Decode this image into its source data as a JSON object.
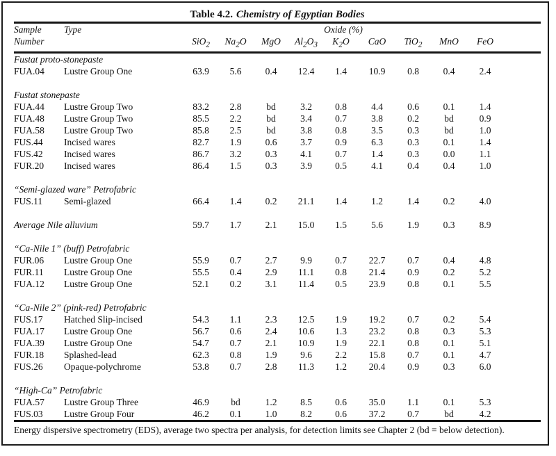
{
  "title": {
    "prefix": "Table 4.2.",
    "name": "Chemistry of Egyptian Bodies"
  },
  "header": {
    "sample_line1": "Sample",
    "sample_line2": "Number",
    "type_label": "Type",
    "oxide_group_label": "Oxide (%)",
    "oxide_columns": [
      "SiO_2",
      "Na_2O",
      "MgO",
      "Al_2O_3",
      "K_2O",
      "CaO",
      "TiO_2",
      "MnO",
      "FeO"
    ]
  },
  "sections": [
    {
      "title": "Fustat proto-stonepaste",
      "rows": [
        {
          "sample": "FUA.04",
          "type": "Lustre Group One",
          "values": [
            "63.9",
            "5.6",
            "0.4",
            "12.4",
            "1.4",
            "10.9",
            "0.8",
            "0.4",
            "2.4"
          ]
        }
      ]
    },
    {
      "title": "Fustat stonepaste",
      "rows": [
        {
          "sample": "FUA.44",
          "type": "Lustre Group Two",
          "values": [
            "83.2",
            "2.8",
            "bd",
            "3.2",
            "0.8",
            "4.4",
            "0.6",
            "0.1",
            "1.4"
          ]
        },
        {
          "sample": "FUA.48",
          "type": "Lustre Group Two",
          "values": [
            "85.5",
            "2.2",
            "bd",
            "3.4",
            "0.7",
            "3.8",
            "0.2",
            "bd",
            "0.9"
          ]
        },
        {
          "sample": "FUA.58",
          "type": "Lustre Group Two",
          "values": [
            "85.8",
            "2.5",
            "bd",
            "3.8",
            "0.8",
            "3.5",
            "0.3",
            "bd",
            "1.0"
          ]
        },
        {
          "sample": "FUS.44",
          "type": "Incised wares",
          "values": [
            "82.7",
            "1.9",
            "0.6",
            "3.7",
            "0.9",
            "6.3",
            "0.3",
            "0.1",
            "1.4"
          ]
        },
        {
          "sample": "FUS.42",
          "type": "Incised wares",
          "values": [
            "86.7",
            "3.2",
            "0.3",
            "4.1",
            "0.7",
            "1.4",
            "0.3",
            "0.0",
            "1.1"
          ]
        },
        {
          "sample": "FUR.20",
          "type": "Incised wares",
          "values": [
            "86.4",
            "1.5",
            "0.3",
            "3.9",
            "0.5",
            "4.1",
            "0.4",
            "0.4",
            "1.0"
          ]
        }
      ]
    },
    {
      "title": "“Semi-glazed ware” Petrofabric",
      "rows": [
        {
          "sample": "FUS.11",
          "type": "Semi-glazed",
          "values": [
            "66.4",
            "1.4",
            "0.2",
            "21.1",
            "1.4",
            "1.2",
            "1.4",
            "0.2",
            "4.0"
          ]
        }
      ]
    },
    {
      "title": "Average Nile alluvium",
      "values": [
        "59.7",
        "1.7",
        "2.1",
        "15.0",
        "1.5",
        "5.6",
        "1.9",
        "0.3",
        "8.9"
      ],
      "rows": []
    },
    {
      "title": "“Ca-Nile 1” (buff) Petrofabric",
      "rows": [
        {
          "sample": "FUR.06",
          "type": "Lustre Group One",
          "values": [
            "55.9",
            "0.7",
            "2.7",
            "9.9",
            "0.7",
            "22.7",
            "0.7",
            "0.4",
            "4.8"
          ]
        },
        {
          "sample": "FUR.11",
          "type": "Lustre Group One",
          "values": [
            "55.5",
            "0.4",
            "2.9",
            "11.1",
            "0.8",
            "21.4",
            "0.9",
            "0.2",
            "5.2"
          ]
        },
        {
          "sample": "FUA.12",
          "type": "Lustre Group One",
          "values": [
            "52.1",
            "0.2",
            "3.1",
            "11.4",
            "0.5",
            "23.9",
            "0.8",
            "0.1",
            "5.5"
          ]
        }
      ]
    },
    {
      "title": "“Ca-Nile 2” (pink-red) Petrofabric",
      "rows": [
        {
          "sample": "FUS.17",
          "type": "Hatched Slip-incised",
          "values": [
            "54.3",
            "1.1",
            "2.3",
            "12.5",
            "1.9",
            "19.2",
            "0.7",
            "0.2",
            "5.4"
          ]
        },
        {
          "sample": "FUA.17",
          "type": "Lustre Group One",
          "values": [
            "56.7",
            "0.6",
            "2.4",
            "10.6",
            "1.3",
            "23.2",
            "0.8",
            "0.3",
            "5.3"
          ]
        },
        {
          "sample": "FUA.39",
          "type": "Lustre Group One",
          "values": [
            "54.7",
            "0.7",
            "2.1",
            "10.9",
            "1.9",
            "22.1",
            "0.8",
            "0.1",
            "5.1"
          ]
        },
        {
          "sample": "FUR.18",
          "type": "Splashed-lead",
          "values": [
            "62.3",
            "0.8",
            "1.9",
            "9.6",
            "2.2",
            "15.8",
            "0.7",
            "0.1",
            "4.7"
          ]
        },
        {
          "sample": "FUS.26",
          "type": "Opaque-polychrome",
          "values": [
            "53.8",
            "0.7",
            "2.8",
            "11.3",
            "1.2",
            "20.4",
            "0.9",
            "0.3",
            "6.0"
          ]
        }
      ]
    },
    {
      "title": "“High-Ca” Petrofabric",
      "rows": [
        {
          "sample": "FUA.57",
          "type": "Lustre Group Three",
          "values": [
            "46.9",
            "bd",
            "1.2",
            "8.5",
            "0.6",
            "35.0",
            "1.1",
            "0.1",
            "5.3"
          ]
        },
        {
          "sample": "FUS.03",
          "type": "Lustre Group Four",
          "values": [
            "46.2",
            "0.1",
            "1.0",
            "8.2",
            "0.6",
            "37.2",
            "0.7",
            "bd",
            "4.2"
          ]
        }
      ]
    }
  ],
  "footnote": "Energy dispersive spectrometry (EDS), average two spectra per analysis, for detection limits see Chapter 2 (bd = below detection)."
}
